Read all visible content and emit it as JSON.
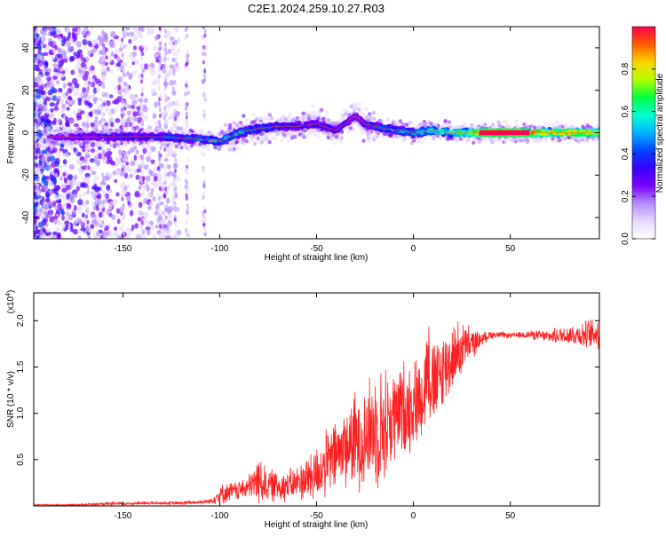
{
  "title": "C2E1.2024.259.10.27.R03",
  "chart_data": [
    {
      "type": "heatmap",
      "xlabel": "Height of straight line (km)",
      "ylabel": "Frequency (Hz)",
      "xlim": [
        -196,
        96
      ],
      "ylim": [
        -50,
        50
      ],
      "xticks": [
        -150,
        -100,
        -50,
        0,
        50
      ],
      "yticks": [
        -40,
        -20,
        0,
        20,
        40
      ],
      "colorbar": {
        "label": "Normalized spectral amplitude",
        "range": [
          0,
          1
        ],
        "ticks": [
          0.0,
          0.2,
          0.4,
          0.6,
          0.8
        ],
        "tick_labels": [
          "0.0",
          "0.2",
          "0.4",
          "0.6",
          "0.8"
        ],
        "colormap": [
          "#ffffff",
          "#e8d8ff",
          "#b48cff",
          "#7a00ff",
          "#3a00ff",
          "#0046ff",
          "#00b4ff",
          "#00ffd2",
          "#00ff3c",
          "#b4ff00",
          "#ffd200",
          "#ff5a00",
          "#ff0050"
        ]
      },
      "ridge": {
        "description_points_x": [
          -186,
          -160,
          -130,
          -110,
          -100,
          -90,
          -80,
          -70,
          -60,
          -50,
          -40,
          -30,
          -25,
          -15,
          0,
          10,
          20,
          30,
          35,
          60,
          80,
          96
        ],
        "center_frequency": [
          -2,
          -2,
          -2,
          -3,
          -4,
          0,
          2,
          3,
          3,
          4,
          1,
          8,
          4,
          2,
          0,
          1,
          0,
          0,
          0,
          0,
          0,
          0
        ],
        "peak_amplitude": [
          0.25,
          0.35,
          0.4,
          0.45,
          0.5,
          0.5,
          0.45,
          0.4,
          0.35,
          0.35,
          0.35,
          0.3,
          0.4,
          0.45,
          0.5,
          0.6,
          0.65,
          0.75,
          0.95,
          0.9,
          0.85,
          0.8
        ]
      }
    },
    {
      "type": "line",
      "xlabel": "Height of straight line (km)",
      "ylabel": "SNR (10 * v/v)",
      "yscale_label": "(x10",
      "yscale_exp": "4",
      "yscale_close": ")",
      "xlim": [
        -196,
        96
      ],
      "ylim": [
        0,
        2.3
      ],
      "xticks": [
        -150,
        -100,
        -50,
        0,
        50
      ],
      "yticks": [
        0.5,
        1.0,
        1.5,
        2.0
      ],
      "color": "#ff2020",
      "series": [
        {
          "x": [
            -196,
            -180,
            -160,
            -140,
            -120,
            -105,
            -100,
            -95,
            -90,
            -85,
            -80,
            -75,
            -70,
            -65,
            -60,
            -55,
            -50,
            -45,
            -40,
            -35,
            -30,
            -25,
            -20,
            -15,
            -10,
            -5,
            0,
            5,
            8,
            10,
            15,
            20,
            25,
            30,
            35,
            40,
            50,
            60,
            70,
            80,
            90,
            96
          ],
          "values": [
            0.01,
            0.01,
            0.02,
            0.03,
            0.03,
            0.05,
            0.12,
            0.15,
            0.17,
            0.2,
            0.28,
            0.22,
            0.22,
            0.22,
            0.25,
            0.3,
            0.35,
            0.45,
            0.55,
            0.65,
            0.7,
            0.75,
            0.85,
            0.85,
            0.95,
            1.05,
            1.1,
            1.2,
            1.6,
            1.25,
            1.45,
            1.6,
            1.7,
            1.75,
            1.8,
            1.85,
            1.84,
            1.85,
            1.83,
            1.85,
            1.85,
            1.87
          ],
          "noise_amplitude": [
            0.01,
            0.01,
            0.02,
            0.02,
            0.02,
            0.03,
            0.12,
            0.12,
            0.12,
            0.15,
            0.3,
            0.2,
            0.2,
            0.2,
            0.2,
            0.3,
            0.35,
            0.4,
            0.45,
            0.5,
            0.6,
            0.65,
            0.7,
            0.75,
            0.6,
            0.6,
            0.55,
            0.5,
            0.7,
            0.6,
            0.5,
            0.4,
            0.35,
            0.2,
            0.08,
            0.05,
            0.03,
            0.05,
            0.08,
            0.12,
            0.18,
            0.2
          ]
        }
      ]
    }
  ]
}
